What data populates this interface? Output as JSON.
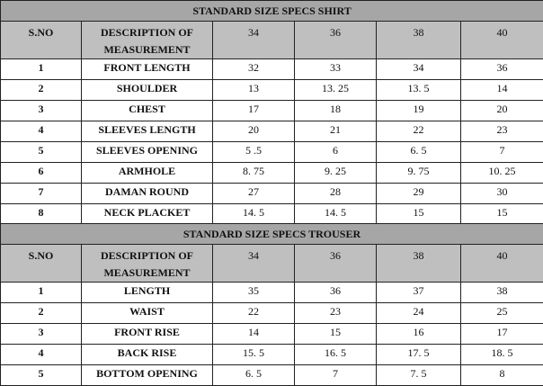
{
  "tables": [
    {
      "title": "STANDARD SIZE SPECS SHIRT",
      "headers": [
        "S.NO",
        "DESCRIPTION OF MEASUREMENT",
        "34",
        "36",
        "38",
        "40"
      ],
      "rows": [
        [
          "1",
          "FRONT LENGTH",
          "32",
          "33",
          "34",
          "36"
        ],
        [
          "2",
          "SHOULDER",
          "13",
          "13. 25",
          "13. 5",
          "14"
        ],
        [
          "3",
          "CHEST",
          "17",
          "18",
          "19",
          "20"
        ],
        [
          "4",
          "SLEEVES LENGTH",
          "20",
          "21",
          "22",
          "23"
        ],
        [
          "5",
          "SLEEVES OPENING",
          "5 .5",
          "6",
          "6. 5",
          "7"
        ],
        [
          "6",
          "ARMHOLE",
          "8. 75",
          "9. 25",
          "9. 75",
          "10. 25"
        ],
        [
          "7",
          "DAMAN ROUND",
          "27",
          "28",
          "29",
          "30"
        ],
        [
          "8",
          "NECK PLACKET",
          "14. 5",
          "14. 5",
          "15",
          "15"
        ]
      ]
    },
    {
      "title": "STANDARD SIZE SPECS TROUSER",
      "headers": [
        "S.NO",
        "DESCRIPTION OF MEASUREMENT",
        "34",
        "36",
        "38",
        "40"
      ],
      "rows": [
        [
          "1",
          "LENGTH",
          "35",
          "36",
          "37",
          "38"
        ],
        [
          "2",
          "WAIST",
          "22",
          "23",
          "24",
          "25"
        ],
        [
          "3",
          "FRONT RISE",
          "14",
          "15",
          "16",
          "17"
        ],
        [
          "4",
          "BACK RISE",
          "15. 5",
          "16. 5",
          "17. 5",
          "18. 5"
        ],
        [
          "5",
          "BOTTOM OPENING",
          "6. 5",
          "7",
          "7. 5",
          "8"
        ]
      ]
    }
  ]
}
